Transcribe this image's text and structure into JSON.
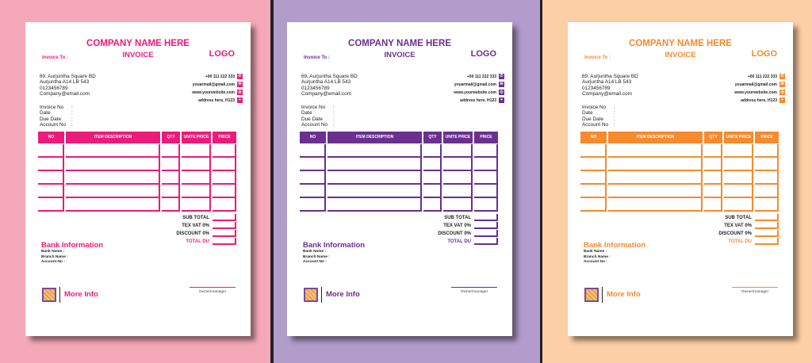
{
  "invoice": {
    "company": "COMPANY NAME HERE",
    "title": "INVOICE",
    "logo": "LOGO",
    "invoice_to": "Invoice To :",
    "address": [
      "69, Aurjuntha Square BD",
      "Aurjuntha A14 LB 543",
      "0123456789",
      "Company@email.com"
    ],
    "meta": [
      "Invoice No",
      "Date",
      "Due Date",
      "Account No"
    ],
    "meta_sep": ":",
    "contacts": [
      {
        "text": "+00 111 222 333",
        "icon": "phone-icon"
      },
      {
        "text": "youarmail@gmail.com",
        "icon": "mail-icon"
      },
      {
        "text": "www.yourwebsite.com",
        "icon": "web-icon"
      },
      {
        "text": "address here, H123",
        "icon": "location-icon"
      }
    ],
    "columns": [
      "NO",
      "ITEM DESCRIPTION",
      "QTY",
      "UNITE PRICE",
      "PRICE"
    ],
    "totals": [
      "SUB TOTAL",
      "TEX VAT 0%",
      "DISCOUNT 0%",
      "TOTAL DU"
    ],
    "bank_title": "Bank Information",
    "bank_fields": [
      "Bank Name  :",
      "Branch Name :",
      "Account No    :"
    ],
    "more_info": "More Info",
    "signature": "Owner/manager"
  },
  "variants": [
    {
      "name": "pink",
      "background": "#f5a8b8",
      "accent": "#ec1b7b"
    },
    {
      "name": "purple",
      "background": "#b29ccc",
      "accent": "#6a2f8f"
    },
    {
      "name": "orange",
      "background": "#fccfa6",
      "accent": "#f68a2e"
    }
  ]
}
